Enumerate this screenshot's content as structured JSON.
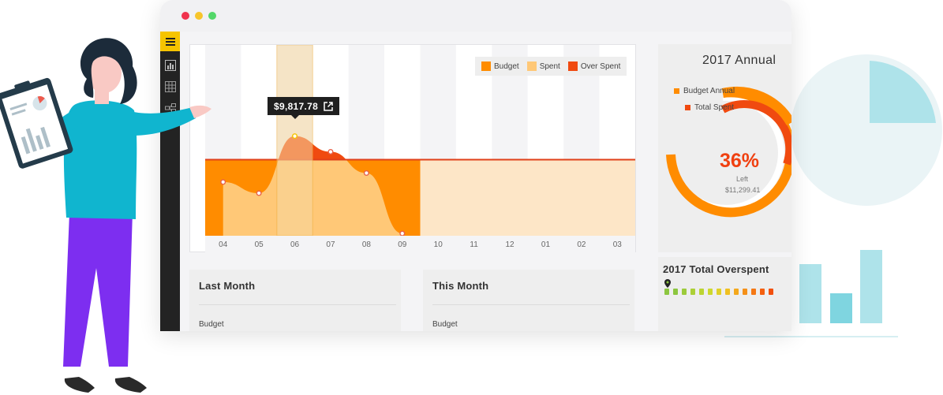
{
  "window": {
    "title": ""
  },
  "sidebar": {
    "items": [
      {
        "icon": "hamburger-menu-icon",
        "active": true
      },
      {
        "icon": "bar-chart-icon",
        "active": false
      },
      {
        "icon": "table-grid-icon",
        "active": false
      },
      {
        "icon": "hierarchy-icon",
        "active": false
      }
    ]
  },
  "chart": {
    "legend": [
      "Budget",
      "Spent",
      "Over Spent"
    ],
    "tooltip": {
      "value": "$9,817.78"
    },
    "colors": {
      "budget": "#ff8c00",
      "spent": "#ffc877",
      "over_spent": "#f04a10",
      "highlight": "#f6d7a0"
    }
  },
  "chart_data": {
    "type": "area",
    "categories": [
      "04",
      "05",
      "06",
      "07",
      "08",
      "09",
      "10",
      "11",
      "12",
      "01",
      "02",
      "03"
    ],
    "series": [
      {
        "name": "Spent",
        "values": [
          48,
          38,
          89,
          75,
          56,
          2,
          null,
          null,
          null,
          null,
          null,
          null
        ]
      }
    ],
    "budget_line": 68,
    "ylim": [
      0,
      100
    ],
    "highlighted_category": "06",
    "highlighted_value": "$9,817.78",
    "grid": true,
    "legend_position": "top-right"
  },
  "annual": {
    "title": "2017 Annual",
    "legend_budget": "Budget Annual",
    "legend_spent": "Total Spent",
    "percent": "36%",
    "left_label": "Left",
    "left_amount": "$11,299.41",
    "percent_value": 36
  },
  "overspent": {
    "title": "2017 Total Overspent",
    "segment_colors": [
      "#8cc63f",
      "#8cc63f",
      "#9ccb3b",
      "#acd036",
      "#bcd432",
      "#cdd82d",
      "#e0d028",
      "#f0c020",
      "#f4a81c",
      "#f59018",
      "#f57814",
      "#f46010",
      "#f2500e"
    ]
  },
  "last_month": {
    "title": "Last Month",
    "row_label": "Budget"
  },
  "this_month": {
    "title": "This Month",
    "row_label": "Budget"
  }
}
